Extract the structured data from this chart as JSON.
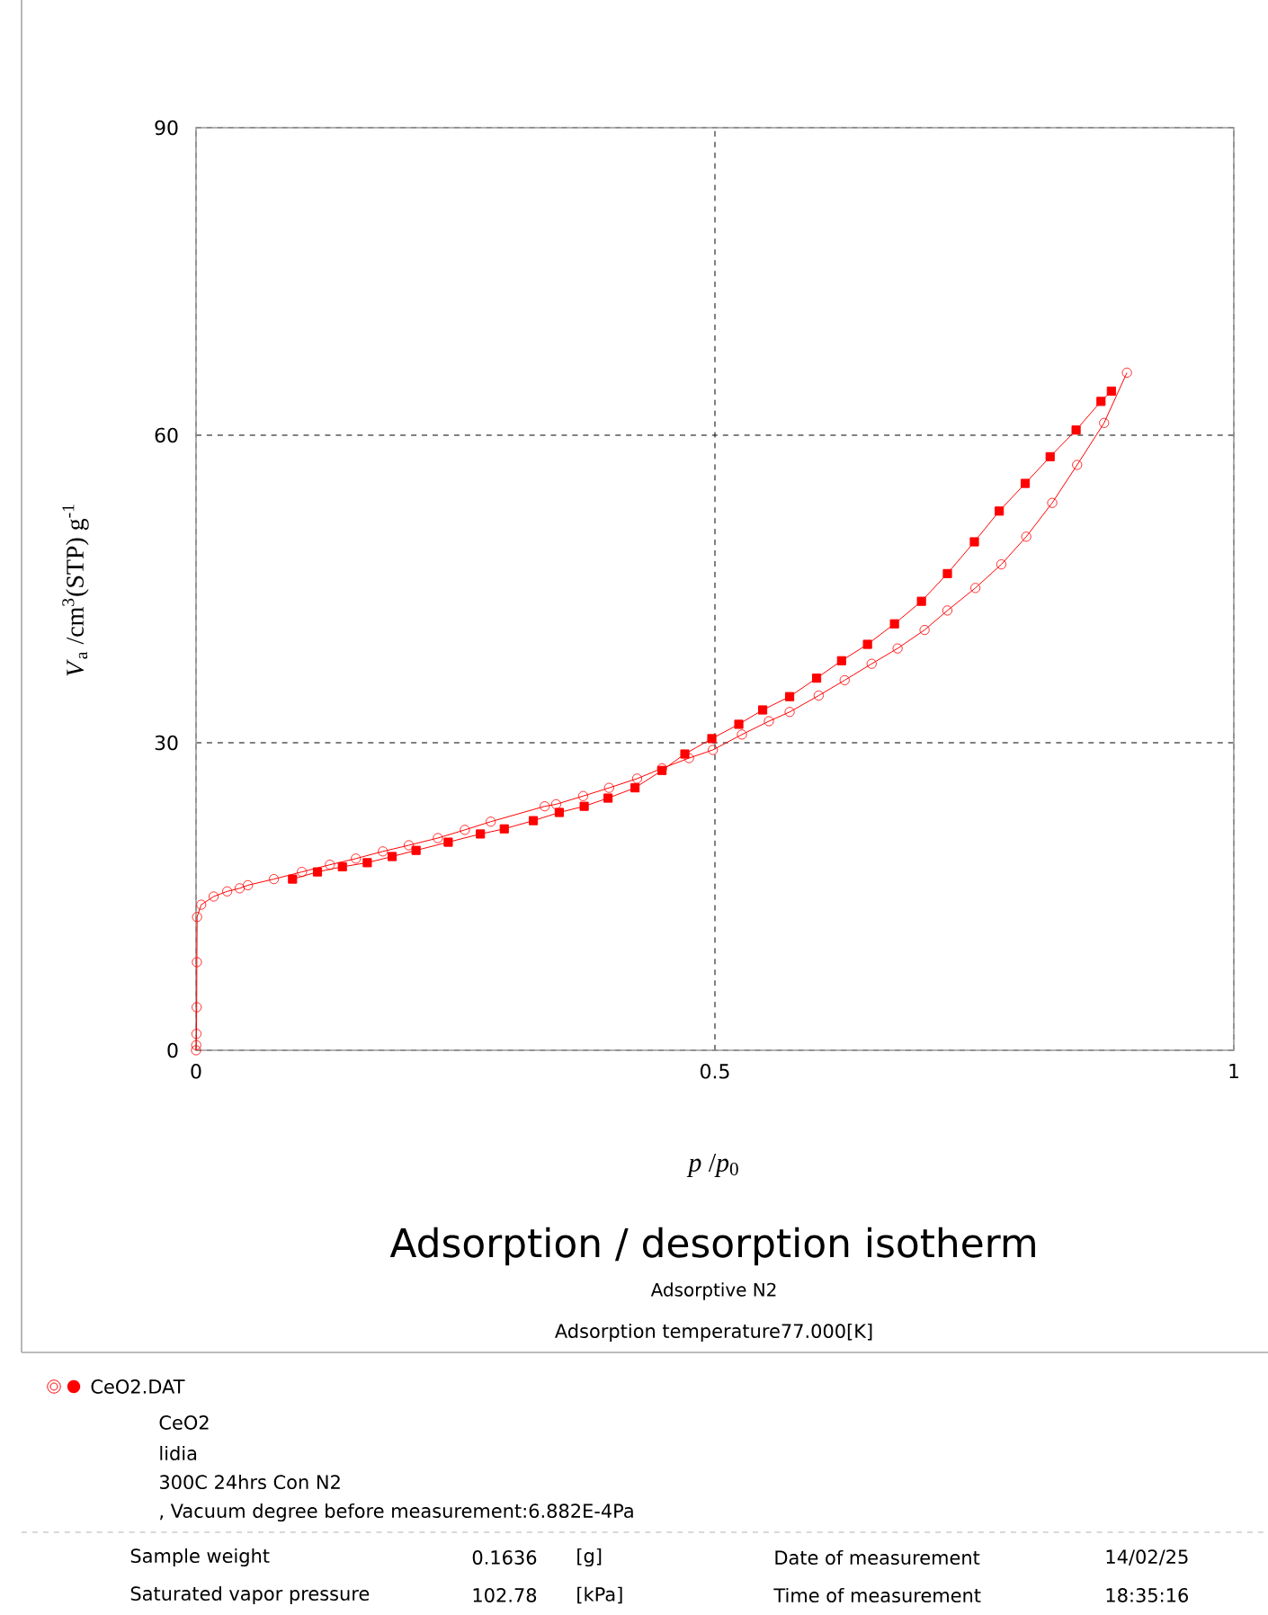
{
  "chart_data": {
    "type": "line",
    "title": "Adsorption / desorption isotherm",
    "subtitle": "Adsorptive N2",
    "xlabel": "*p* /*p*$_{0}$",
    "ylabel": "*V*$_{a}$ /cm$^{3}$(STP) g$^{-1}$",
    "xlim": [
      0,
      1
    ],
    "ylim": [
      0,
      90
    ],
    "xticks": [
      0,
      0.5,
      1
    ],
    "yticks": [
      0,
      30,
      60,
      90
    ],
    "grid": true,
    "legend": "bottom",
    "series": [
      {
        "name": "CeO2.DAT",
        "color": "#ff0000",
        "marker": "circle",
        "x": [
          0,
          0.0002,
          0.0004,
          0.0006,
          0.0008,
          0.001,
          0.005,
          0.017,
          0.03,
          0.042,
          0.05,
          0.075,
          0.102,
          0.129,
          0.154,
          0.18,
          0.205,
          0.233,
          0.259,
          0.284,
          0.336,
          0.347,
          0.373,
          0.398,
          0.425,
          0.449,
          0.475,
          0.498,
          0.526,
          0.552,
          0.572,
          0.6,
          0.625,
          0.651,
          0.676,
          0.702,
          0.724,
          0.751,
          0.776,
          0.8,
          0.825,
          0.849,
          0.875,
          0.897
        ],
        "values": [
          0,
          0.5,
          1.6,
          4.2,
          8.6,
          13,
          14.2,
          15,
          15.5,
          15.8,
          16.1,
          16.7,
          17.4,
          18.1,
          18.7,
          19.4,
          20,
          20.7,
          21.5,
          22.3,
          23.8,
          24,
          24.8,
          25.6,
          26.5,
          27.5,
          28.5,
          29.3,
          30.8,
          32.1,
          33,
          34.6,
          36.1,
          37.7,
          39.2,
          41,
          42.9,
          45.1,
          47.4,
          50.1,
          53.4,
          57.1,
          61.2,
          66.1
        ]
      },
      {
        "color": "#ff0000",
        "marker": "square",
        "x": [
          0.882,
          0.872,
          0.848,
          0.823,
          0.799,
          0.774,
          0.75,
          0.724,
          0.699,
          0.673,
          0.647,
          0.622,
          0.598,
          0.572,
          0.546,
          0.523,
          0.497,
          0.471,
          0.449,
          0.423,
          0.397,
          0.374,
          0.35,
          0.325,
          0.297,
          0.274,
          0.243,
          0.212,
          0.189,
          0.165,
          0.141,
          0.117,
          0.093
        ],
        "values": [
          64.3,
          63.3,
          60.5,
          57.9,
          55.3,
          52.6,
          49.6,
          46.5,
          43.8,
          41.6,
          39.6,
          38,
          36.3,
          34.5,
          33.2,
          31.8,
          30.4,
          28.9,
          27.3,
          25.6,
          24.6,
          23.8,
          23.2,
          22.4,
          21.6,
          21.1,
          20.3,
          19.5,
          18.9,
          18.3,
          17.9,
          17.4,
          16.7
        ]
      }
    ],
    "annotations": [
      "Adsorption temperature77.000[K]",
      "CeO2",
      "lidia",
      "300C 24hrs Con N2",
      ", Vacuum degree before measurement:6.882E-4Pa",
      "Sample weight",
      "0.1636",
      "[g]",
      "Date of measurement",
      "14/02/25",
      "Saturated vapor pressure",
      "102.78",
      "[kPa]",
      "Time of measurement",
      "18:35:16"
    ]
  }
}
